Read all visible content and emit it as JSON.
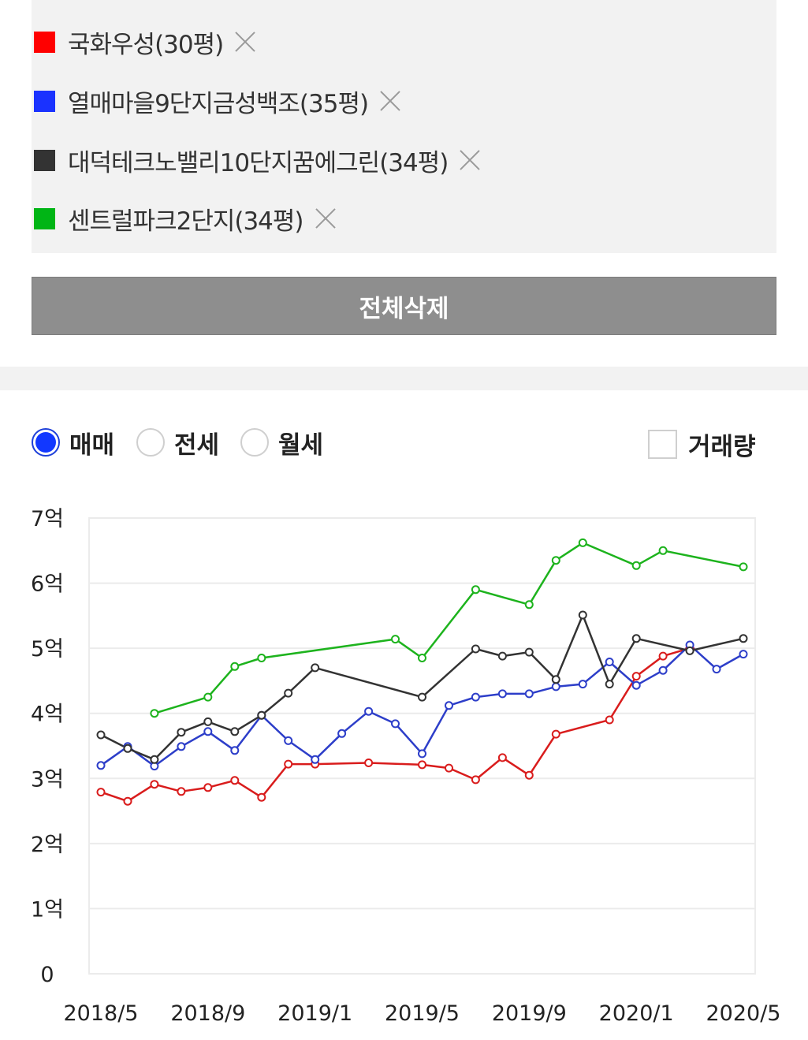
{
  "legend": {
    "items": [
      {
        "label": "국화우성(30평)",
        "color": "#ff0000"
      },
      {
        "label": "열매마을9단지금성백조(35평)",
        "color": "#1a32ff"
      },
      {
        "label": "대덕테크노밸리10단지꿈에그린(34평)",
        "color": "#333333"
      },
      {
        "label": "센트럴파크2단지(34평)",
        "color": "#00b515"
      }
    ]
  },
  "toolbar": {
    "delete_all_label": "전체삭제"
  },
  "options": {
    "radios": [
      {
        "label": "매매",
        "checked": true
      },
      {
        "label": "전세",
        "checked": false
      },
      {
        "label": "월세",
        "checked": false
      }
    ],
    "volume_label": "거래량",
    "volume_checked": false
  },
  "chart_data": {
    "type": "line",
    "y_ticks": [
      "0",
      "1억",
      "2억",
      "3억",
      "4억",
      "5억",
      "6억",
      "7억"
    ],
    "x_ticks": [
      "2018/5",
      "2018/9",
      "2019/1",
      "2019/5",
      "2019/9",
      "2020/1",
      "2020/5"
    ],
    "ylim": [
      0,
      7
    ],
    "xlim": [
      "2018/5",
      "2020/5"
    ],
    "grid": true,
    "series": [
      {
        "name": "국화우성(30평)",
        "color": "#d91c1c",
        "points": [
          [
            "2018/5",
            2.79
          ],
          [
            "2018/6",
            2.65
          ],
          [
            "2018/7",
            2.91
          ],
          [
            "2018/8",
            2.8
          ],
          [
            "2018/9",
            2.86
          ],
          [
            "2018/10",
            2.97
          ],
          [
            "2018/11",
            2.71
          ],
          [
            "2018/12",
            3.22
          ],
          [
            "2019/1",
            3.22
          ],
          [
            "2019/3",
            3.24
          ],
          [
            "2019/5",
            3.21
          ],
          [
            "2019/6",
            3.16
          ],
          [
            "2019/7",
            2.98
          ],
          [
            "2019/8",
            3.32
          ],
          [
            "2019/9",
            3.05
          ],
          [
            "2019/10",
            3.68
          ],
          [
            "2019/12",
            3.9
          ],
          [
            "2020/1",
            4.57
          ],
          [
            "2020/2",
            4.88
          ],
          [
            "2020/3",
            5.0
          ]
        ]
      },
      {
        "name": "열매마을9단지금성백조(35평)",
        "color": "#2d3ec9",
        "points": [
          [
            "2018/5",
            3.2
          ],
          [
            "2018/6",
            3.49
          ],
          [
            "2018/7",
            3.19
          ],
          [
            "2018/8",
            3.49
          ],
          [
            "2018/9",
            3.72
          ],
          [
            "2018/10",
            3.43
          ],
          [
            "2018/11",
            3.97
          ],
          [
            "2018/12",
            3.58
          ],
          [
            "2019/1",
            3.29
          ],
          [
            "2019/2",
            3.69
          ],
          [
            "2019/3",
            4.03
          ],
          [
            "2019/4",
            3.84
          ],
          [
            "2019/5",
            3.38
          ],
          [
            "2019/6",
            4.12
          ],
          [
            "2019/7",
            4.25
          ],
          [
            "2019/8",
            4.3
          ],
          [
            "2019/9",
            4.3
          ],
          [
            "2019/10",
            4.41
          ],
          [
            "2019/11",
            4.45
          ],
          [
            "2019/12",
            4.79
          ],
          [
            "2020/1",
            4.43
          ],
          [
            "2020/2",
            4.66
          ],
          [
            "2020/3",
            5.05
          ],
          [
            "2020/4",
            4.68
          ],
          [
            "2020/5",
            4.91
          ]
        ]
      },
      {
        "name": "대덕테크노밸리10단지꿈에그린(34평)",
        "color": "#333333",
        "points": [
          [
            "2018/5",
            3.67
          ],
          [
            "2018/6",
            3.46
          ],
          [
            "2018/7",
            3.29
          ],
          [
            "2018/8",
            3.71
          ],
          [
            "2018/9",
            3.87
          ],
          [
            "2018/10",
            3.72
          ],
          [
            "2018/11",
            3.97
          ],
          [
            "2018/12",
            4.31
          ],
          [
            "2019/1",
            4.7
          ],
          [
            "2019/5",
            4.25
          ],
          [
            "2019/7",
            4.99
          ],
          [
            "2019/8",
            4.88
          ],
          [
            "2019/9",
            4.94
          ],
          [
            "2019/10",
            4.52
          ],
          [
            "2019/11",
            5.51
          ],
          [
            "2019/12",
            4.45
          ],
          [
            "2020/1",
            5.15
          ],
          [
            "2020/3",
            4.96
          ],
          [
            "2020/5",
            5.15
          ]
        ]
      },
      {
        "name": "센트럴파크2단지(34평)",
        "color": "#1db31d",
        "points": [
          [
            "2018/7",
            4.0
          ],
          [
            "2018/9",
            4.25
          ],
          [
            "2018/10",
            4.72
          ],
          [
            "2018/11",
            4.85
          ],
          [
            "2019/4",
            5.14
          ],
          [
            "2019/5",
            4.85
          ],
          [
            "2019/7",
            5.9
          ],
          [
            "2019/9",
            5.67
          ],
          [
            "2019/10",
            6.35
          ],
          [
            "2019/11",
            6.62
          ],
          [
            "2020/1",
            6.27
          ],
          [
            "2020/2",
            6.5
          ],
          [
            "2020/5",
            6.25
          ]
        ]
      }
    ]
  }
}
